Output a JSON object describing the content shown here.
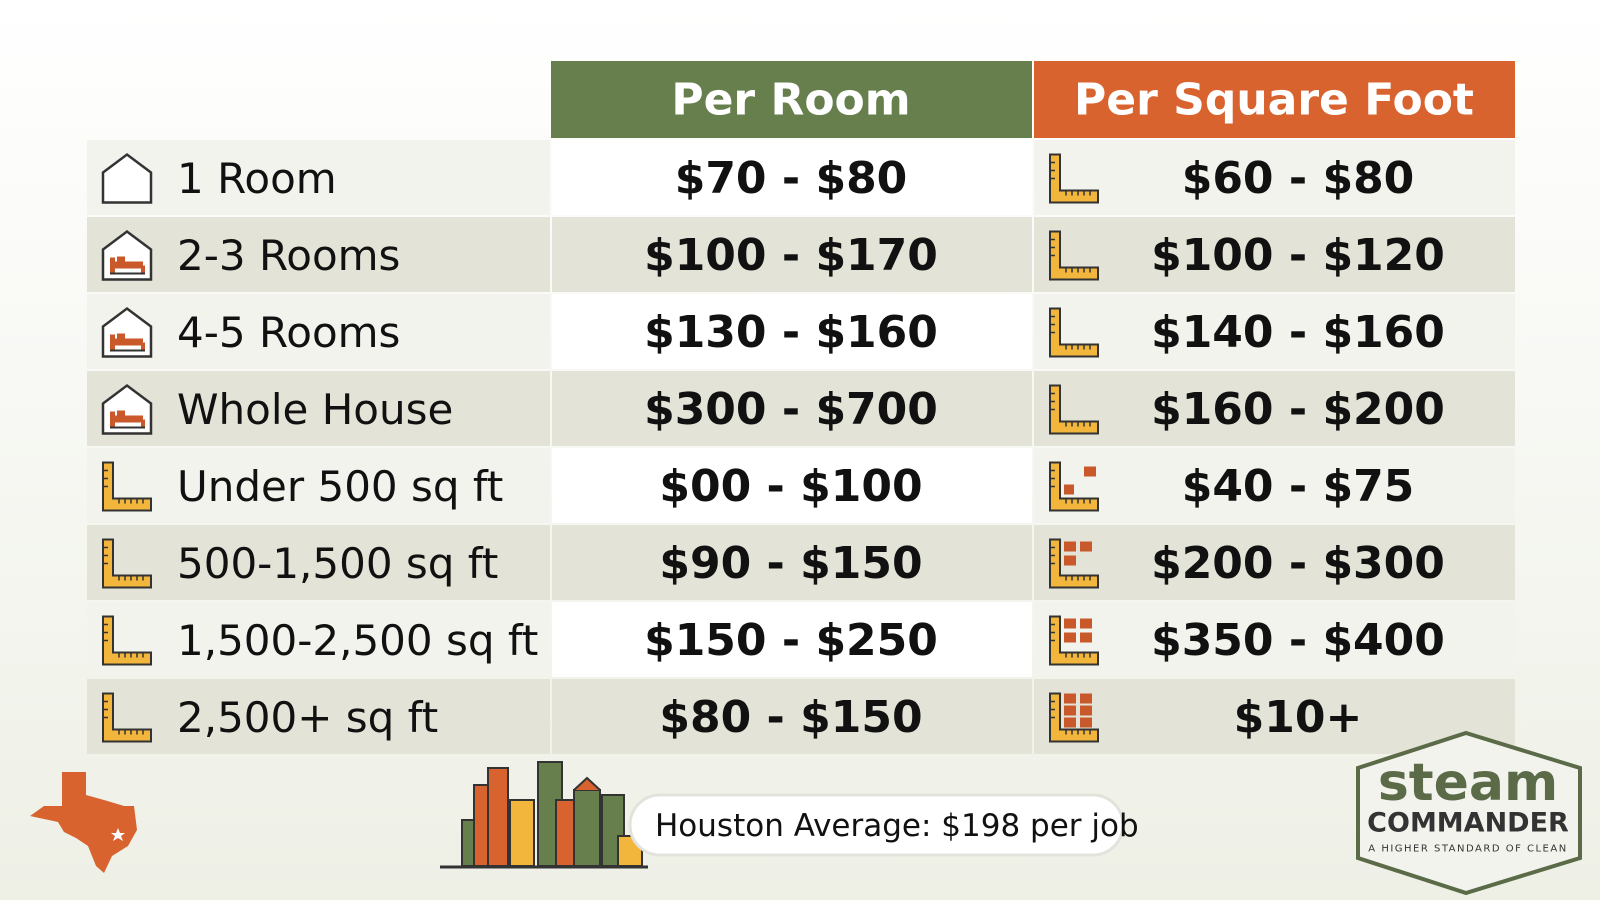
{
  "table": {
    "headers": [
      "Per Room",
      "Per Square Foot"
    ],
    "rows": [
      [
        "1 Room",
        "$70 - $80",
        "$60 - $80"
      ],
      [
        "2-3 Rooms",
        "$100 - $170",
        "$100 - $120"
      ],
      [
        "4-5 Rooms",
        "$130 - $160",
        "$140 - $160"
      ],
      [
        "Whole House",
        "$300 - $700",
        "$160 - $200"
      ],
      [
        "Under 500 sq ft",
        "$00 - $100",
        "$40 - $75"
      ],
      [
        "500-1,500 sq ft",
        "$90 - $150",
        "$200 - $300"
      ],
      [
        "1,500-2,500 sq ft",
        "$150 - $250",
        "$350 - $400"
      ],
      [
        "2,500+ sq ft",
        "$80 - $150",
        "$10+"
      ]
    ]
  },
  "footer": {
    "note": "Houston Average: $198 per job"
  },
  "logo": {
    "brand": "steam",
    "name": "COMMANDER",
    "tagline": "A HIGHER STANDARD OF CLEAN"
  }
}
